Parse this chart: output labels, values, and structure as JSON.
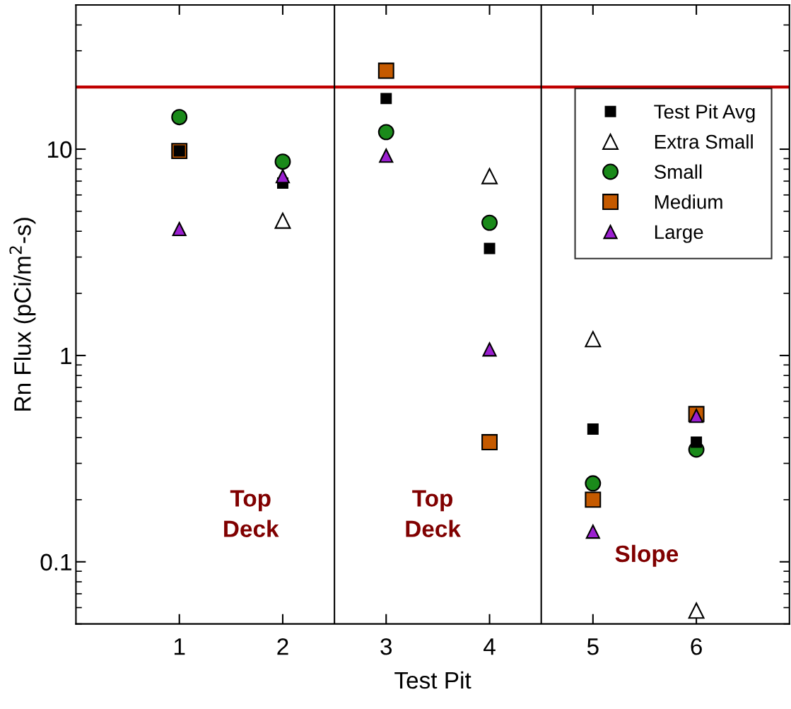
{
  "chart_data": {
    "type": "scatter",
    "xlabel": "Test Pit",
    "ylabel": "Rn Flux (pCi/m$^{2}$-s)",
    "log": "y",
    "xlim": [
      0,
      6.9
    ],
    "xticks": [
      1,
      2,
      3,
      4,
      5,
      6
    ],
    "ylim": [
      0.05,
      50
    ],
    "yticks": [
      0.1,
      1,
      10
    ],
    "legend": "top right",
    "grid": false,
    "series": [
      {
        "name": "Test Pit Avg",
        "color": "#000000",
        "marker": "square",
        "x": [
          1,
          2,
          3,
          4,
          5,
          6
        ],
        "values": [
          9.8,
          6.85,
          17.6,
          3.3,
          0.44,
          0.38
        ]
      },
      {
        "name": "Extra Small",
        "color": "#ffffff",
        "marker": "triangle",
        "x": [
          2,
          4,
          5,
          6
        ],
        "values": [
          4.5,
          7.4,
          1.2,
          0.058
        ]
      },
      {
        "name": "Small",
        "color": "#1a8a1a",
        "marker": "circle",
        "x": [
          1,
          2,
          3,
          4,
          5,
          6
        ],
        "values": [
          14.3,
          8.7,
          12.1,
          4.4,
          0.24,
          0.35
        ]
      },
      {
        "name": "Medium",
        "color": "#c55a00",
        "marker": "square",
        "x": [
          1,
          3,
          4,
          5,
          6
        ],
        "values": [
          9.8,
          24,
          0.38,
          0.2,
          0.52
        ]
      },
      {
        "name": "Large",
        "color": "#9b1fd0",
        "marker": "triangle",
        "x": [
          1,
          2,
          3,
          4,
          5,
          6
        ],
        "values": [
          4.1,
          7.4,
          9.3,
          1.07,
          0.14,
          0.51
        ]
      }
    ],
    "ref_lines": [
      {
        "axis": "y",
        "value": 20,
        "color": "#c00000"
      },
      {
        "axis": "x",
        "value": 2.5,
        "color": "#000000"
      },
      {
        "axis": "x",
        "value": 4.5,
        "color": "#000000"
      }
    ],
    "annotations": [
      "Top\nDeck",
      "Top\nDeck",
      "Slope"
    ]
  }
}
